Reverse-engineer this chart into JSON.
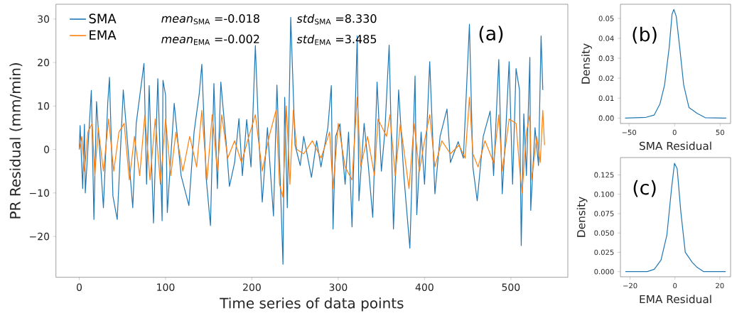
{
  "chart_data": [
    {
      "type": "line",
      "xlabel": "Time series of data points",
      "ylabel": "PR Residual (mm/min)",
      "legend": "top left",
      "xlim": [
        -27,
        566
      ],
      "ylim": [
        -29.4,
        33.4
      ],
      "xticks": [
        0,
        100,
        200,
        300,
        400,
        500
      ],
      "yticks": [
        {
          "value": -20,
          "label": "−20"
        },
        {
          "value": -10,
          "label": "−10"
        },
        0,
        10,
        20,
        30
      ],
      "annotations": [
        "*mean*$_{SMA}$ =-0.018",
        "*std*$_{SMA}$ =8.330",
        "*mean*$_{EMA}$ =-0.002",
        "*std*$_{EMA}$ =3.485",
        "(a)"
      ],
      "series": [
        {
          "name": "SMA",
          "color": "#1f77b4",
          "x": [
            0,
            1,
            4,
            6,
            7,
            14,
            17,
            20,
            28,
            33,
            35,
            39,
            44,
            51,
            62,
            66,
            75,
            78,
            81,
            86,
            91,
            96,
            97,
            100,
            102,
            110,
            118,
            127,
            133,
            139,
            142,
            147,
            152,
            156,
            160,
            164,
            170,
            174,
            180,
            185,
            189,
            194,
            199,
            204,
            208,
            212,
            218,
            225,
            229,
            233,
            236,
            238,
            241,
            245,
            250,
            256,
            260,
            269,
            275,
            280,
            288,
            292,
            294,
            297,
            302,
            308,
            312,
            316,
            322,
            324,
            330,
            335,
            340,
            345,
            350,
            354,
            359,
            364,
            370,
            376,
            383,
            389,
            391,
            396,
            400,
            406,
            412,
            418,
            426,
            430,
            439,
            445,
            452,
            456,
            461,
            468,
            476,
            480,
            486,
            490,
            494,
            498,
            502,
            506,
            510,
            512,
            515,
            518,
            522,
            523,
            528,
            532,
            535,
            537
          ],
          "values": [
            0,
            5.5,
            -9,
            5.8,
            -10,
            13.6,
            -16.1,
            11,
            -13.4,
            10.6,
            16.6,
            -10.7,
            -16.1,
            13.7,
            -13.4,
            6,
            19.8,
            -8,
            14.7,
            -16.9,
            16.3,
            -16.4,
            15.9,
            12.5,
            -14.5,
            10.6,
            -6,
            -12.9,
            4,
            12.8,
            19.6,
            -6.5,
            -17.5,
            15.2,
            -9,
            15.5,
            2,
            -8.5,
            -3,
            7.1,
            -6,
            6.9,
            -4,
            23.9,
            3,
            -12.1,
            5,
            -15.3,
            14.8,
            -8,
            -26.4,
            12,
            -13.4,
            30.4,
            1,
            -3.7,
            3,
            -6.4,
            2,
            -4,
            5,
            14.7,
            -18.3,
            3,
            5.9,
            -8,
            4,
            -17.8,
            26.1,
            -11.8,
            6,
            -4,
            -15.6,
            15.5,
            -5,
            4,
            24,
            -18.3,
            13.7,
            -6,
            -22.7,
            16.9,
            -15,
            4,
            -8,
            20.2,
            -10.2,
            3,
            9.3,
            -3,
            1.8,
            -2,
            28.8,
            -4,
            -11.8,
            3,
            8.8,
            -6,
            20.7,
            -10.2,
            4,
            20.2,
            -8,
            18.6,
            13.7,
            -22.1,
            8.2,
            -6,
            21.2,
            -14,
            5,
            -3.7,
            26.1,
            13.7
          ]
        },
        {
          "name": "EMA",
          "color": "#ff7f0e",
          "x": [
            0,
            3,
            6,
            10,
            15,
            18,
            22,
            28,
            34,
            40,
            46,
            52,
            58,
            64,
            70,
            76,
            82,
            88,
            94,
            100,
            106,
            112,
            120,
            128,
            136,
            142,
            148,
            154,
            160,
            165,
            172,
            180,
            188,
            195,
            204,
            212,
            220,
            228,
            232,
            236,
            240,
            244,
            248,
            252,
            260,
            270,
            280,
            290,
            294,
            300,
            308,
            316,
            322,
            326,
            334,
            342,
            346,
            356,
            360,
            366,
            372,
            382,
            388,
            394,
            400,
            406,
            412,
            420,
            430,
            440,
            447,
            452,
            456,
            462,
            470,
            480,
            486,
            490,
            498,
            506,
            510,
            513,
            518,
            522,
            524,
            530,
            534,
            537,
            539
          ],
          "values": [
            0,
            3,
            -5,
            4,
            6,
            -6,
            5,
            -5,
            7,
            -5,
            4,
            6,
            -7,
            3,
            -6,
            8,
            -7,
            7,
            -8,
            7,
            -6,
            4,
            -5,
            3,
            -4,
            9,
            -7,
            8,
            -5,
            8,
            -2,
            2,
            -3,
            2,
            8,
            -5,
            3,
            9,
            -8,
            -11,
            10,
            -8,
            9,
            0,
            -1,
            2,
            -2,
            4,
            -9,
            6,
            -4,
            -7,
            12,
            -4,
            3,
            -6,
            7,
            3,
            8,
            -6,
            6,
            -9,
            6,
            -5,
            2,
            8,
            -4,
            2,
            -1,
            1,
            -2,
            12,
            -1,
            -4,
            2,
            -3,
            8,
            -5,
            7,
            6,
            -4,
            -10,
            4,
            8,
            -7,
            3,
            -3,
            9,
            1
          ]
        }
      ]
    },
    {
      "type": "line",
      "xlabel": "SMA Residual",
      "ylabel": "Density",
      "xlim": [
        -59.5,
        61.5
      ],
      "ylim": [
        -0.0027,
        0.0571
      ],
      "xticks": [
        {
          "value": -50,
          "label": "−50"
        },
        0,
        50
      ],
      "yticks": [
        {
          "value": 0,
          "label": "0.00"
        },
        {
          "value": 0.01,
          "label": "0.01"
        },
        {
          "value": 0.02,
          "label": "0.02"
        },
        {
          "value": 0.03,
          "label": "0.03"
        },
        {
          "value": 0.04,
          "label": "0.04"
        },
        {
          "value": 0.05,
          "label": "0.05"
        }
      ],
      "annotations": [
        "(b)"
      ],
      "series": [
        {
          "color": "#1f77b4",
          "x": [
            -54.4,
            -31.4,
            -22.5,
            -16.1,
            -11,
            -5.9,
            -2.8,
            -0.8,
            1.8,
            5.6,
            10,
            15.8,
            24.8,
            33.7,
            56.7
          ],
          "values": [
            0,
            0.0004,
            0.0015,
            0.0071,
            0.0166,
            0.0355,
            0.0521,
            0.0545,
            0.051,
            0.0355,
            0.0166,
            0.0053,
            0.0024,
            0.0002,
            0
          ]
        }
      ]
    },
    {
      "type": "line",
      "xlabel": "EMA Residual",
      "ylabel": "Density",
      "xlim": [
        -24.3,
        24.8
      ],
      "ylim": [
        -0.0067,
        0.1474
      ],
      "xticks": [
        {
          "value": -20,
          "label": "−20"
        },
        0,
        20
      ],
      "yticks": [
        {
          "value": 0,
          "label": "0.000"
        },
        {
          "value": 0.025,
          "label": "0.025"
        },
        {
          "value": 0.05,
          "label": "0.050"
        },
        {
          "value": 0.075,
          "label": "0.075"
        },
        {
          "value": 0.1,
          "label": "0.100"
        },
        {
          "value": 0.125,
          "label": "0.125"
        }
      ],
      "annotations": [
        "(c)"
      ],
      "series": [
        {
          "color": "#1f77b4",
          "x": [
            -22.1,
            -12.3,
            -9.2,
            -6.2,
            -3.6,
            -1.5,
            -0.2,
            1,
            2.6,
            4.6,
            7.7,
            9.7,
            12.8,
            22.6
          ],
          "values": [
            0,
            0,
            0.003,
            0.015,
            0.047,
            0.108,
            0.14,
            0.133,
            0.078,
            0.025,
            0.012,
            0.006,
            0,
            0
          ]
        }
      ]
    }
  ]
}
